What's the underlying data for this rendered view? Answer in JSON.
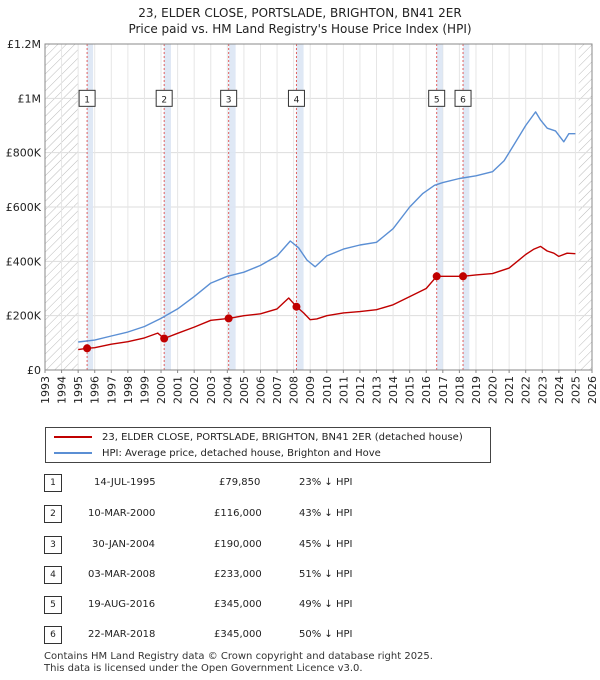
{
  "title_line1": "23, ELDER CLOSE, PORTSLADE, BRIGHTON, BN41 2ER",
  "title_line2": "Price paid vs. HM Land Registry's House Price Index (HPI)",
  "legend": {
    "property_label": "23, ELDER CLOSE, PORTSLADE, BRIGHTON, BN41 2ER (detached house)",
    "hpi_label": "HPI: Average price, detached house, Brighton and Hove"
  },
  "colors": {
    "property": "#c00000",
    "hpi": "#5b8fd4",
    "band": "#dce6f4",
    "hatch": "#bbbbbb",
    "marker_line": "#e06060"
  },
  "transactions": [
    {
      "num": "1",
      "date": "14-JUL-1995",
      "price": "£79,850",
      "hpi": "23% ↓ HPI"
    },
    {
      "num": "2",
      "date": "10-MAR-2000",
      "price": "£116,000",
      "hpi": "43% ↓ HPI"
    },
    {
      "num": "3",
      "date": "30-JAN-2004",
      "price": "£190,000",
      "hpi": "45% ↓ HPI"
    },
    {
      "num": "4",
      "date": "03-MAR-2008",
      "price": "£233,000",
      "hpi": "51% ↓ HPI"
    },
    {
      "num": "5",
      "date": "19-AUG-2016",
      "price": "£345,000",
      "hpi": "49% ↓ HPI"
    },
    {
      "num": "6",
      "date": "22-MAR-2018",
      "price": "£345,000",
      "hpi": "50% ↓ HPI"
    }
  ],
  "footer_line1": "Contains HM Land Registry data © Crown copyright and database right 2025.",
  "footer_line2": "This data is licensed under the Open Government Licence v3.0.",
  "chart_data": {
    "type": "line",
    "title": "23, ELDER CLOSE, PORTSLADE, BRIGHTON, BN41 2ER",
    "subtitle": "Price paid vs. HM Land Registry's House Price Index (HPI)",
    "xlabel": "",
    "ylabel": "",
    "xlim": [
      1993,
      2026
    ],
    "ylim": [
      0,
      1200000
    ],
    "x_ticks": [
      1993,
      1994,
      1995,
      1996,
      1997,
      1998,
      1999,
      2000,
      2001,
      2002,
      2003,
      2004,
      2005,
      2006,
      2007,
      2008,
      2009,
      2010,
      2011,
      2012,
      2013,
      2014,
      2015,
      2016,
      2017,
      2018,
      2019,
      2020,
      2021,
      2022,
      2023,
      2024,
      2025,
      2026
    ],
    "y_ticks": [
      {
        "value": 0,
        "label": "£0"
      },
      {
        "value": 200000,
        "label": "£200K"
      },
      {
        "value": 400000,
        "label": "£400K"
      },
      {
        "value": 600000,
        "label": "£600K"
      },
      {
        "value": 800000,
        "label": "£800K"
      },
      {
        "value": 1000000,
        "label": "£1M"
      },
      {
        "value": 1200000,
        "label": "£1.2M"
      }
    ],
    "grid": true,
    "legend_position": "below",
    "hatched_ranges": [
      [
        1993,
        1995.0
      ],
      [
        2025.2,
        2026
      ]
    ],
    "shaded_bands": [
      [
        1995.54,
        1995.9
      ],
      [
        2000.19,
        2000.6
      ],
      [
        2004.08,
        2004.5
      ],
      [
        2008.17,
        2008.6
      ],
      [
        2016.63,
        2017.0
      ],
      [
        2018.22,
        2018.6
      ]
    ],
    "sales": [
      {
        "label": "1",
        "x": 1995.54,
        "y": 79850
      },
      {
        "label": "2",
        "x": 2000.19,
        "y": 116000
      },
      {
        "label": "3",
        "x": 2004.08,
        "y": 190000
      },
      {
        "label": "4",
        "x": 2008.17,
        "y": 233000
      },
      {
        "label": "5",
        "x": 2016.63,
        "y": 345000
      },
      {
        "label": "6",
        "x": 2018.22,
        "y": 345000
      }
    ],
    "series": [
      {
        "name": "23, ELDER CLOSE, PORTSLADE, BRIGHTON, BN41 2ER (detached house)",
        "x": [
          1995.0,
          1995.54,
          1996.0,
          1997.0,
          1998.0,
          1999.0,
          1999.8,
          2000.19,
          2001.0,
          2002.0,
          2003.0,
          2004.08,
          2005.0,
          2006.0,
          2007.0,
          2007.7,
          2008.17,
          2008.6,
          2009.0,
          2009.4,
          2010.0,
          2011.0,
          2012.0,
          2013.0,
          2014.0,
          2015.0,
          2016.0,
          2016.63,
          2017.0,
          2018.22,
          2019.0,
          2020.0,
          2021.0,
          2021.5,
          2022.0,
          2022.5,
          2022.9,
          2023.3,
          2023.7,
          2024.0,
          2024.5,
          2025.0
        ],
        "y": [
          75000,
          79850,
          82000,
          95000,
          104000,
          118000,
          136000,
          116000,
          135000,
          158000,
          183000,
          190000,
          200000,
          207000,
          225000,
          265000,
          233000,
          210000,
          185000,
          188000,
          200000,
          210000,
          215000,
          222000,
          240000,
          270000,
          300000,
          345000,
          345000,
          345000,
          350000,
          355000,
          375000,
          400000,
          425000,
          445000,
          455000,
          438000,
          430000,
          418000,
          430000,
          428000
        ]
      },
      {
        "name": "HPI: Average price, detached house, Brighton and Hove",
        "x": [
          1995.0,
          1996.0,
          1997.0,
          1998.0,
          1999.0,
          2000.0,
          2001.0,
          2002.0,
          2003.0,
          2004.0,
          2005.0,
          2006.0,
          2007.0,
          2007.8,
          2008.3,
          2008.8,
          2009.3,
          2010.0,
          2011.0,
          2012.0,
          2013.0,
          2014.0,
          2015.0,
          2015.8,
          2016.5,
          2017.0,
          2018.0,
          2019.0,
          2020.0,
          2020.7,
          2021.3,
          2022.0,
          2022.6,
          2022.9,
          2023.3,
          2023.8,
          2024.3,
          2024.6,
          2025.0
        ],
        "y": [
          103000,
          110000,
          125000,
          140000,
          160000,
          190000,
          225000,
          270000,
          320000,
          345000,
          360000,
          385000,
          420000,
          475000,
          450000,
          405000,
          380000,
          420000,
          445000,
          460000,
          470000,
          520000,
          600000,
          650000,
          680000,
          690000,
          705000,
          715000,
          730000,
          770000,
          830000,
          900000,
          950000,
          920000,
          890000,
          880000,
          840000,
          870000,
          870000
        ]
      }
    ]
  }
}
